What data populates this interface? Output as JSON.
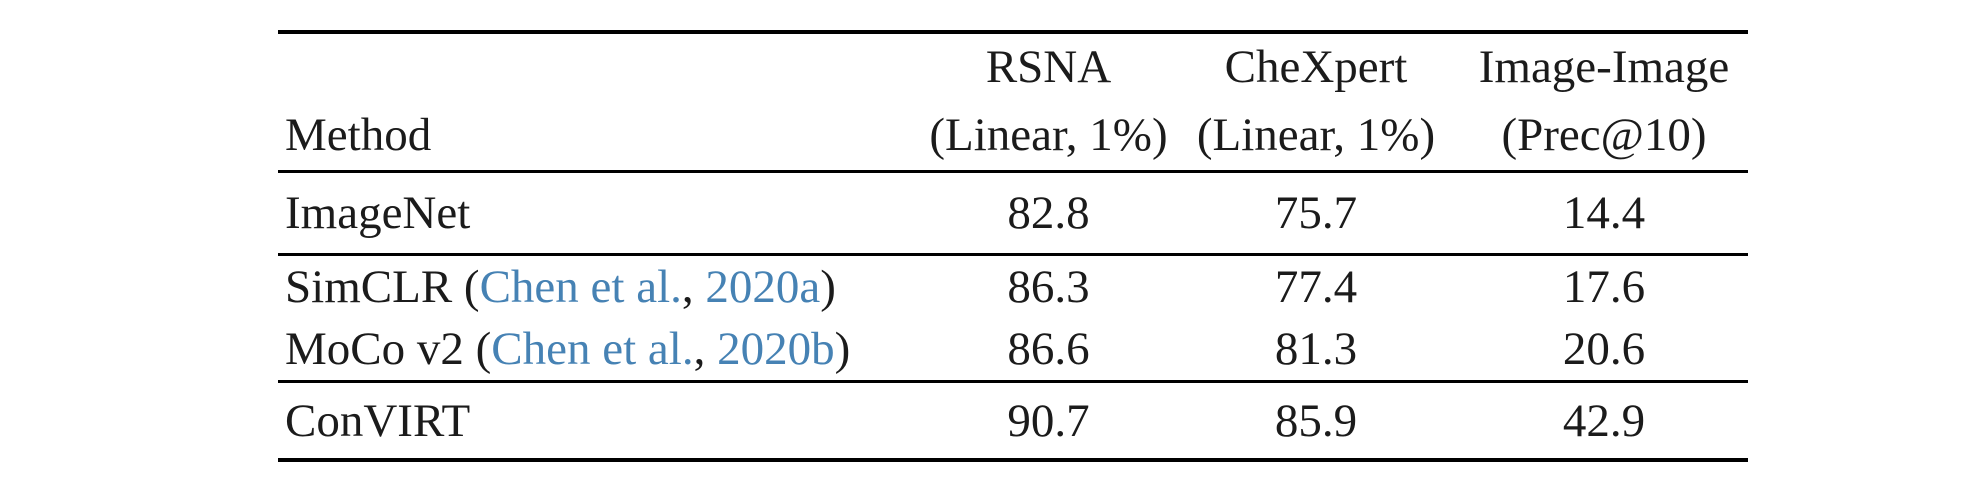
{
  "page": {
    "background_color": "#ffffff",
    "text_color": "#1b1b1b",
    "rule_color": "#000000",
    "link_color": "#4682b4"
  },
  "table": {
    "header": {
      "method_label": "Method",
      "columns": [
        {
          "line1": "RSNA",
          "line2": "(Linear, 1%)"
        },
        {
          "line1": "CheXpert",
          "line2": "(Linear, 1%)"
        },
        {
          "line1": "Image-Image",
          "line2": "(Prec@10)"
        }
      ]
    },
    "groups": [
      {
        "rows": [
          {
            "method": {
              "prefix": "ImageNet"
            },
            "values": [
              "82.8",
              "75.7",
              "14.4"
            ]
          }
        ]
      },
      {
        "rows": [
          {
            "method": {
              "prefix": "SimCLR (",
              "cite_name": "Chen et al.",
              "sep": ", ",
              "cite_year": "2020a",
              "suffix": ")"
            },
            "values": [
              "86.3",
              "77.4",
              "17.6"
            ]
          },
          {
            "method": {
              "prefix": "MoCo v2 (",
              "cite_name": "Chen et al.",
              "sep": ", ",
              "cite_year": "2020b",
              "suffix": ")"
            },
            "values": [
              "86.6",
              "81.3",
              "20.6"
            ]
          }
        ]
      },
      {
        "rows": [
          {
            "method": {
              "prefix": "ConVIRT"
            },
            "values": [
              "90.7",
              "85.9",
              "42.9"
            ]
          }
        ]
      }
    ]
  }
}
